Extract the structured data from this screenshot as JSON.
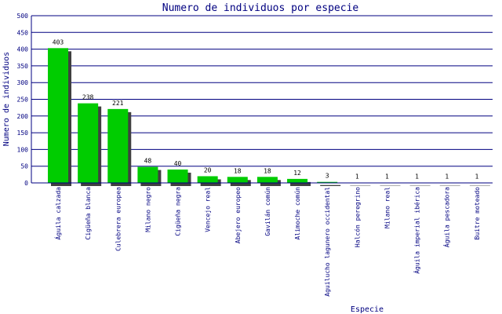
{
  "chart_data": {
    "type": "bar",
    "title": "Numero de individuos por especie",
    "xlabel": "Especie",
    "ylabel": "Numero de individuos",
    "ylim": [
      0,
      500
    ],
    "yticks": [
      0,
      50,
      100,
      150,
      200,
      250,
      300,
      350,
      400,
      450,
      500
    ],
    "grid": true,
    "legend": "none",
    "colors": {
      "bar": "#00cc00",
      "shadow": "#404040",
      "grid": "#000080",
      "axis": "#000080",
      "title": "#000080"
    },
    "categories": [
      "Águila calzada",
      "Cigüeña blanca",
      "Culebrera europea",
      "Milano negro",
      "Cigüeña negra",
      "Vencejo real",
      "Abejero europeo",
      "Gavilán común",
      "Alimoche común",
      "Aguilucho lagunero occidental",
      "Halcón peregrino",
      "Milano real",
      "Águila imperial ibérica",
      "Águila pescadora",
      "Buitre moteado"
    ],
    "values": [
      403,
      238,
      221,
      48,
      40,
      20,
      18,
      18,
      12,
      3,
      1,
      1,
      1,
      1,
      1
    ]
  }
}
